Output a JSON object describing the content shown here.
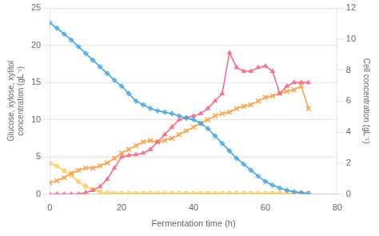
{
  "chart_data": {
    "type": "line",
    "x": [
      0,
      2,
      4,
      6,
      8,
      10,
      12,
      14,
      16,
      18,
      20,
      22,
      24,
      26,
      28,
      30,
      32,
      34,
      36,
      38,
      40,
      42,
      44,
      46,
      48,
      50,
      52,
      54,
      56,
      58,
      60,
      62,
      64,
      66,
      68,
      70,
      72
    ],
    "series": [
      {
        "marker": "diamond",
        "values": [
          23,
          22.3,
          21.5,
          20.7,
          19.8,
          18.9,
          18.0,
          17.1,
          16.2,
          15.3,
          14.5,
          13.5,
          12.5,
          12.0,
          11.5,
          11.2,
          11.0,
          10.8,
          10.5,
          10.2,
          10.0,
          9.5,
          8.8,
          7.8,
          6.8,
          5.8,
          4.8,
          4.0,
          3.2,
          2.4,
          1.7,
          1.2,
          0.8,
          0.5,
          0.3,
          0.2,
          0.1
        ]
      },
      {
        "marker": "triangle",
        "values": [
          0,
          0,
          0,
          0,
          0,
          0.2,
          0.5,
          1.0,
          2.0,
          3.5,
          5.0,
          5.2,
          5.3,
          5.5,
          6.0,
          7.0,
          8.0,
          9.0,
          10.0,
          10.3,
          10.5,
          10.8,
          11.5,
          12.5,
          13.5,
          19.0,
          17.0,
          16.5,
          16.5,
          17.0,
          17.2,
          16.5,
          13.5,
          14.5,
          15.0,
          15.0,
          15.0
        ]
      },
      {
        "marker": "x",
        "values": [
          1.5,
          1.8,
          2.2,
          2.8,
          3.2,
          3.5,
          3.5,
          3.8,
          4.2,
          4.8,
          5.5,
          6.0,
          6.5,
          7.0,
          7.2,
          7.0,
          7.2,
          7.5,
          8.0,
          8.5,
          9.0,
          9.5,
          10.0,
          10.5,
          10.8,
          11.0,
          11.5,
          11.8,
          12.0,
          12.5,
          13.0,
          13.2,
          13.5,
          13.8,
          14.0,
          14.5,
          11.5
        ]
      },
      {
        "marker": "square",
        "axis": "y2",
        "values": [
          2.0,
          1.8,
          1.5,
          1.2,
          0.8,
          0.5,
          0.3,
          0.15,
          0.08,
          0.05,
          0.05,
          0.05,
          0.05,
          0.05,
          0.05,
          0.05,
          0.05,
          0.05,
          0.05,
          0.05,
          0.05,
          0.05,
          0.05,
          0.05,
          0.05,
          0.05,
          0.05,
          0.05,
          0.05,
          0.05,
          0.05,
          0.05,
          0.05,
          0.05,
          0.05,
          0.05,
          0.05
        ]
      }
    ],
    "xlabel": "Fermentation time (h)",
    "ylabel": "Glucose, xylose, xylitol\nconcentration (gL⁻¹)",
    "y2label": "Cell concentration (gL⁻¹)",
    "xlim": [
      0,
      80
    ],
    "xticks": [
      0,
      20,
      40,
      60,
      80
    ],
    "ylim": [
      0,
      25
    ],
    "yticks": [
      0,
      5,
      10,
      15,
      20,
      25
    ],
    "y2lim": [
      0,
      12
    ],
    "y2ticks": [
      0,
      2,
      4,
      6,
      8,
      10,
      12
    ],
    "grid": true
  }
}
